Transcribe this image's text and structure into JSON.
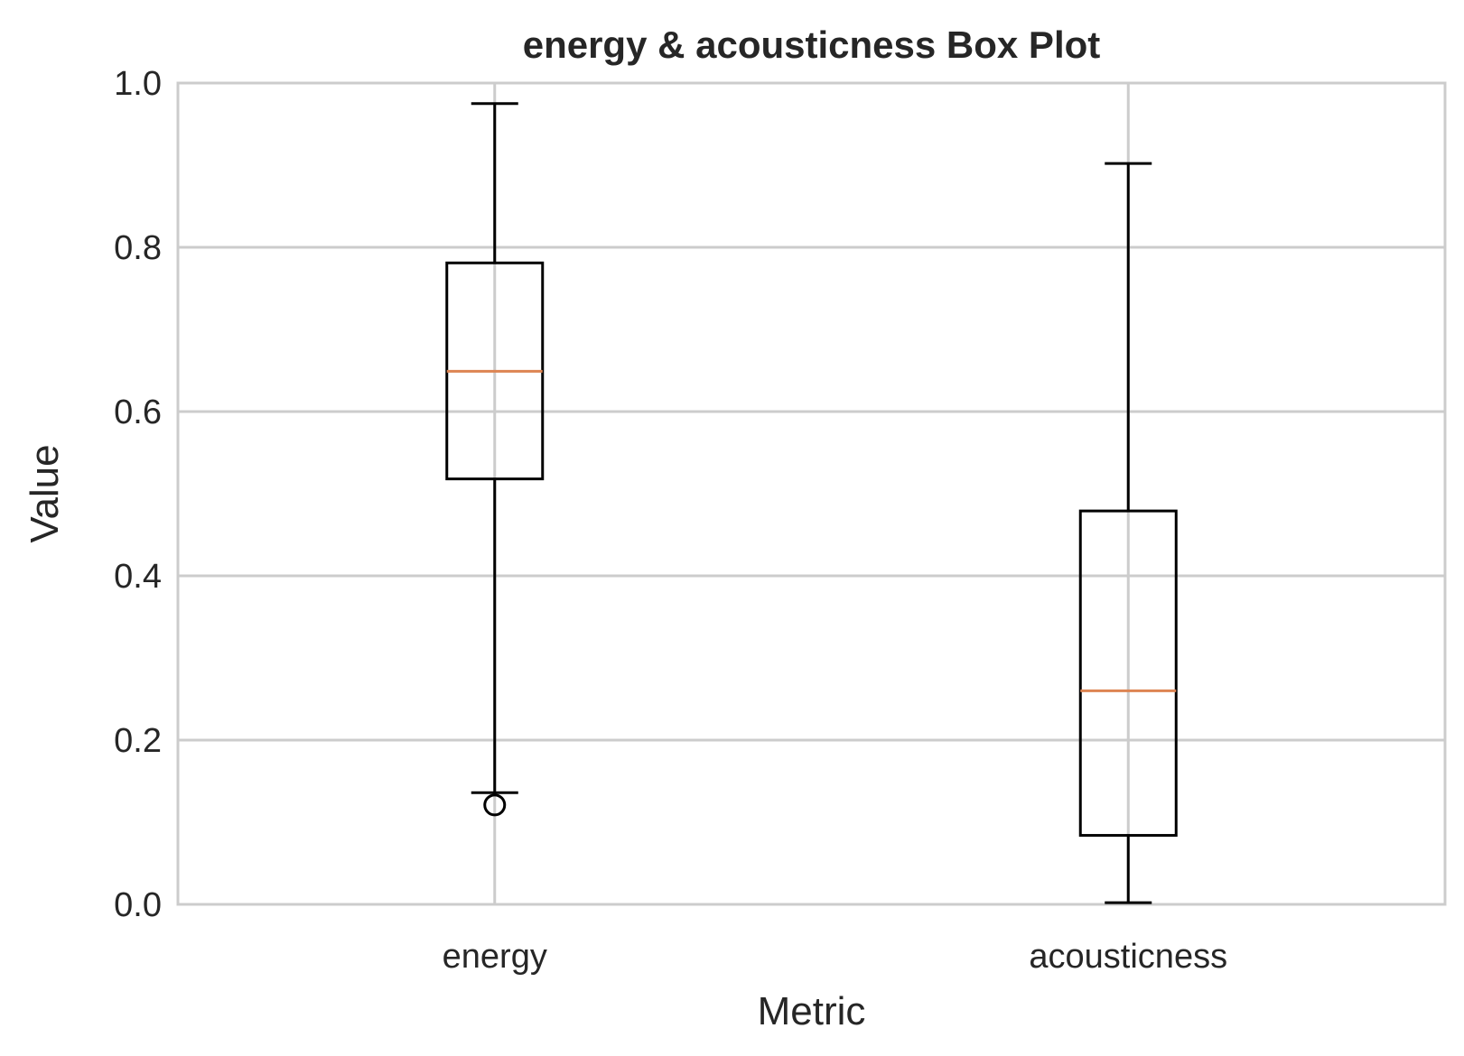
{
  "chart_data": {
    "type": "box",
    "title": "energy & acousticness Box Plot",
    "xlabel": "Metric",
    "ylabel": "Value",
    "ylim": [
      0.0,
      1.0
    ],
    "yticks": [
      "0.0",
      "0.2",
      "0.4",
      "0.6",
      "0.8",
      "1.0"
    ],
    "grid": true,
    "categories": [
      "energy",
      "acousticness"
    ],
    "boxes": [
      {
        "name": "energy",
        "whisker_low": 0.136,
        "q1": 0.518,
        "median": 0.649,
        "q3": 0.781,
        "whisker_high": 0.975,
        "outliers": [
          0.121
        ]
      },
      {
        "name": "acousticness",
        "whisker_low": 0.002,
        "q1": 0.084,
        "median": 0.26,
        "q3": 0.479,
        "whisker_high": 0.902,
        "outliers": []
      }
    ],
    "colors": {
      "box": "#000000",
      "median": "#dd8452",
      "grid": "#cccccc",
      "text": "#262626"
    }
  }
}
